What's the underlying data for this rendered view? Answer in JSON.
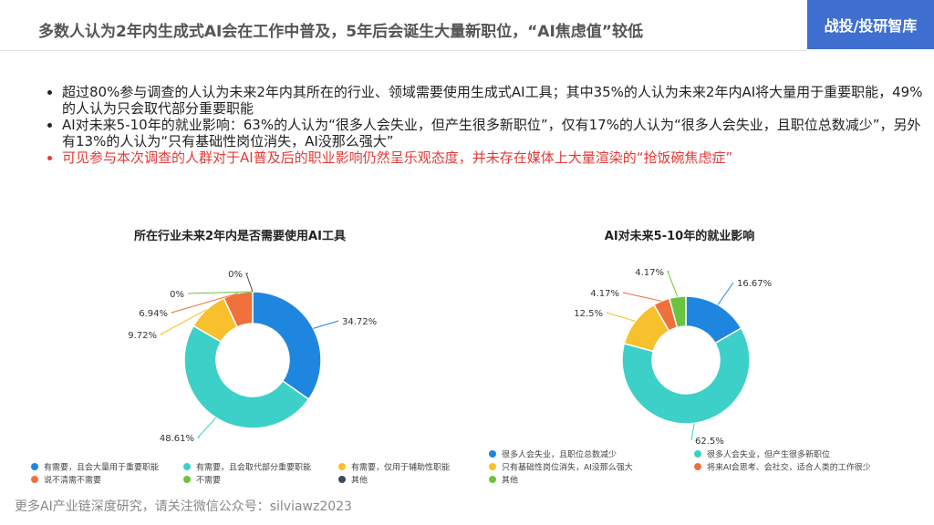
{
  "header": {
    "title": "多数人认为2年内生成式AI会在工作中普及，5年后会诞生大量新职位，“AI焦虑值”较低",
    "badge": "战投/投研智库"
  },
  "bullets": [
    "超过80%参与调查的人认为未来2年内其所在的行业、领域需要使用生成式AI工具；其中35%的人认为未来2年内AI将大量用于重要职能，49%的人认为只会取代部分重要职能",
    "AI对未来5-10年的就业影响：63%的人认为“很多人会失业，但产生很多新职位”，仅有17%的人认为“很多人会失业，且职位总数减少”，另外有13%的人认为“只有基础性岗位消失，AI没那么强大”",
    "可见参与本次调查的人群对于AI普及后的职业影响仍然呈乐观态度，并未存在媒体上大量渲染的“抢饭碗焦虑症”"
  ],
  "footer": "更多AI产业链深度研究，请关注微信公众号：silviawz2023",
  "chart_data": [
    {
      "type": "donut",
      "title": "所在行业未来2年内是否需要使用AI工具",
      "categories": [
        "有需要，且会大量用于重要职能",
        "有需要，且会取代部分重要职能",
        "有需要，仅用于辅助性职能",
        "说不清需不需要",
        "不需要",
        "其他"
      ],
      "values": [
        34.72,
        48.61,
        9.72,
        6.94,
        0,
        0
      ],
      "value_labels": [
        "34.72%",
        "48.61%",
        "9.72%",
        "6.94%",
        "0%",
        "0%"
      ],
      "colors": [
        "#1f86e0",
        "#3cd0c8",
        "#f6c12c",
        "#f0703c",
        "#6ac43e",
        "#3b4a5c"
      ]
    },
    {
      "type": "donut",
      "title": "AI对未来5-10年的就业影响",
      "categories": [
        "很多人会失业，且职位总数减少",
        "很多人会失业，但产生很多新职位",
        "只有基础性岗位消失，AI没那么强大",
        "将来AI会思考、会社交，适合人类的工作很少",
        "其他"
      ],
      "values": [
        16.67,
        62.5,
        12.5,
        4.17,
        4.17
      ],
      "value_labels": [
        "16.67%",
        "62.5%",
        "12.5%",
        "4.17%",
        "4.17%"
      ],
      "colors": [
        "#1f86e0",
        "#3cd0c8",
        "#f6c12c",
        "#f0703c",
        "#6ac43e"
      ]
    }
  ]
}
